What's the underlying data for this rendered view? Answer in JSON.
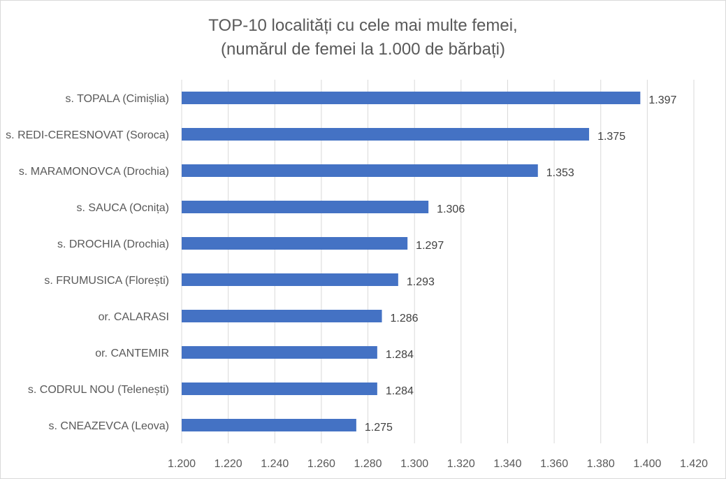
{
  "chart_data": {
    "type": "bar",
    "orientation": "horizontal",
    "title_line1": "TOP-10 localități cu cele mai multe femei,",
    "title_line2": "(numărul de femei la 1.000 de bărbați)",
    "xlabel": "",
    "ylabel": "",
    "xlim": [
      1.2,
      1.42
    ],
    "x_ticks": [
      1.2,
      1.22,
      1.24,
      1.26,
      1.28,
      1.3,
      1.32,
      1.34,
      1.36,
      1.38,
      1.4,
      1.42
    ],
    "x_tick_labels": [
      "1.200",
      "1.220",
      "1.240",
      "1.260",
      "1.280",
      "1.300",
      "1.320",
      "1.340",
      "1.360",
      "1.380",
      "1.400",
      "1.420"
    ],
    "grid": "vertical",
    "legend": "none",
    "bar_color": "#4472c4",
    "categories": [
      "s. TOPALA (Cimișlia)",
      "s. REDI-CERESNOVAT (Soroca)",
      "s. MARAMONOVCA (Drochia)",
      "s. SAUCA (Ocnița)",
      "s. DROCHIA (Drochia)",
      "s. FRUMUSICA (Florești)",
      "or. CALARASI",
      "or. CANTEMIR",
      "s. CODRUL NOU (Telenești)",
      "s. CNEAZEVCA (Leova)"
    ],
    "values": [
      1.397,
      1.375,
      1.353,
      1.306,
      1.297,
      1.293,
      1.286,
      1.284,
      1.284,
      1.275
    ],
    "data_labels": [
      "1.397",
      "1.375",
      "1.353",
      "1.306",
      "1.297",
      "1.293",
      "1.286",
      "1.284",
      "1.284",
      "1.275"
    ]
  }
}
